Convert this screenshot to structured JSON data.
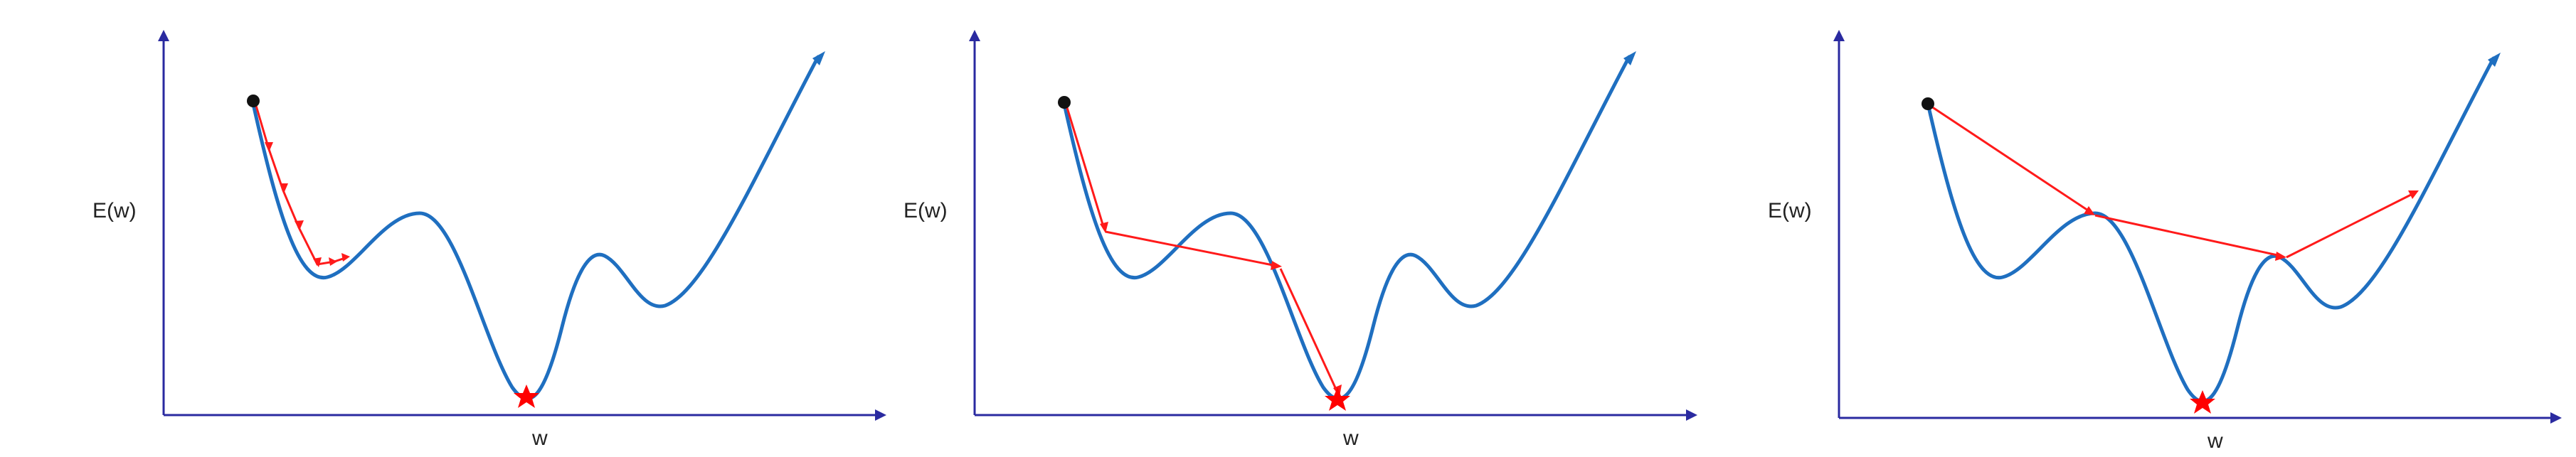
{
  "colors": {
    "axis": "#2a2aa0",
    "curve": "#1f6fc0",
    "steps": "#ff1a1a",
    "start": "#111111",
    "minimum": "#ff0000"
  },
  "panels": [
    {
      "id": "small-learning-rate",
      "ylabel": "E(w)",
      "xlabel": "w"
    },
    {
      "id": "medium-learning-rate",
      "ylabel": "E(w)",
      "xlabel": "w"
    },
    {
      "id": "large-learning-rate",
      "ylabel": "E(w)",
      "xlabel": "w"
    }
  ]
}
